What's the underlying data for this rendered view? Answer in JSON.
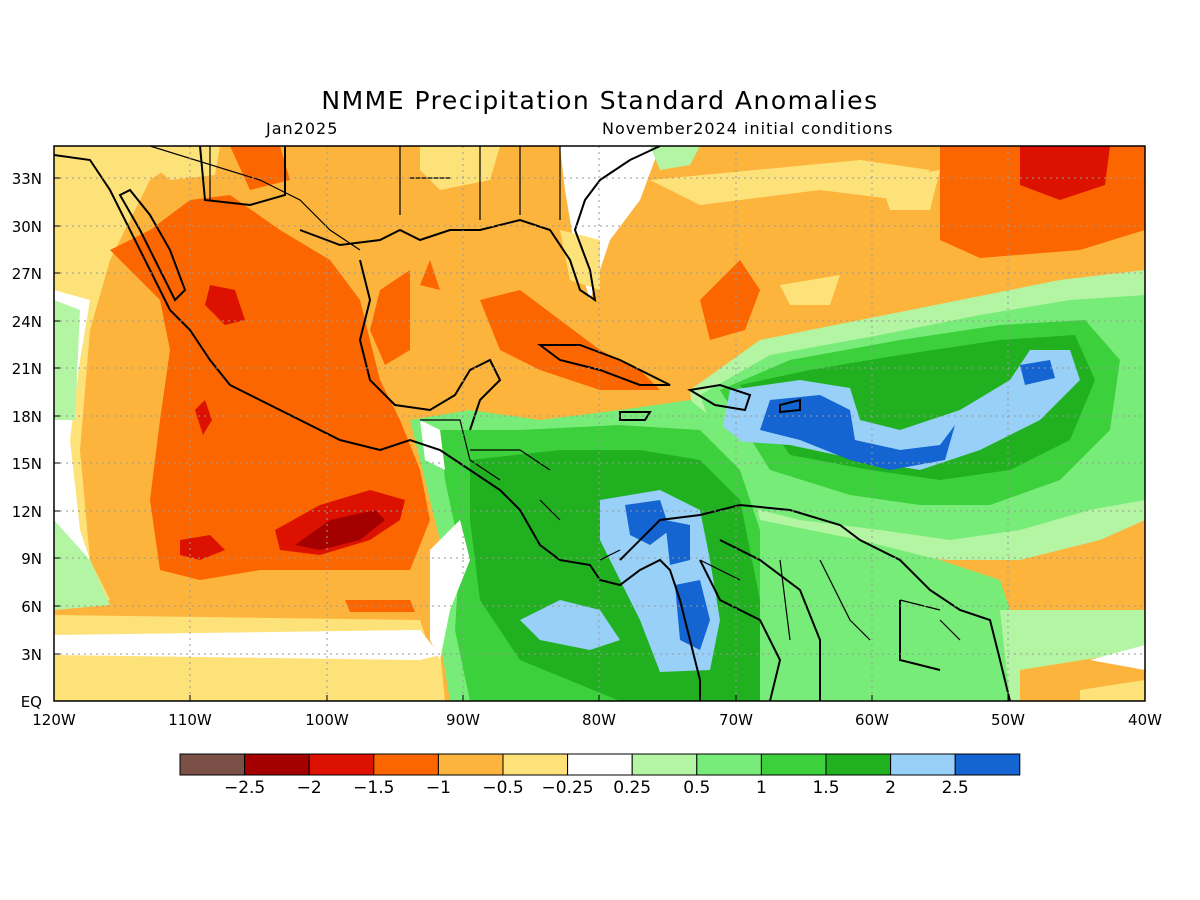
{
  "title": "NMME Precipitation Standard Anomalies",
  "valid_month": "Jan2025",
  "init_conditions": "November2024 initial conditions",
  "lat_labels": [
    "33N",
    "30N",
    "27N",
    "24N",
    "21N",
    "18N",
    "15N",
    "12N",
    "9N",
    "6N",
    "3N",
    "EQ"
  ],
  "lon_labels": [
    "120W",
    "110W",
    "100W",
    "90W",
    "80W",
    "70W",
    "60W",
    "50W",
    "40W"
  ],
  "colorbar": {
    "colors": [
      "#7b5147",
      "#a50000",
      "#dd1100",
      "#fc6600",
      "#fcb43c",
      "#fde27a",
      "#ffffff",
      "#b4f5a4",
      "#78ec78",
      "#3cd03c",
      "#20b020",
      "#98d0f8",
      "#1464d2"
    ],
    "labels": [
      "−2.5",
      "−2",
      "−1.5",
      "−1",
      "−0.5",
      "−0.25",
      "0.25",
      "0.5",
      "1",
      "1.5",
      "2",
      "2.5"
    ]
  }
}
